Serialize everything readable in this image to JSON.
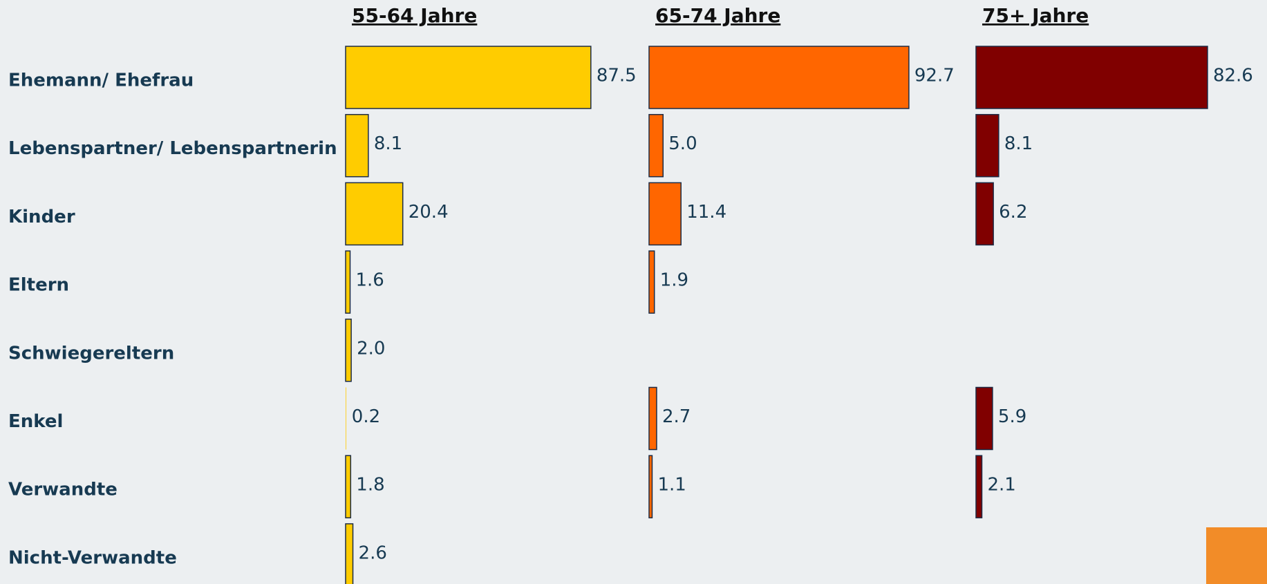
{
  "chart_data": {
    "type": "bar",
    "orientation": "horizontal",
    "categories": [
      "Ehemann/ Ehefrau",
      "Lebenspartner/ Lebenspartnerin",
      "Kinder",
      "Eltern",
      "Schwiegereltern",
      "Enkel",
      "Verwandte",
      "Nicht-Verwandte"
    ],
    "series": [
      {
        "name": "55-64 Jahre",
        "color": "#ffcc00",
        "values": [
          87.5,
          8.1,
          20.4,
          1.6,
          2.0,
          0.2,
          1.8,
          2.6
        ],
        "value_labels": [
          "87.5",
          "8.1",
          "20.4",
          "1.6",
          "2.0",
          "0.2",
          "1.8",
          "2.6"
        ]
      },
      {
        "name": "65-74 Jahre",
        "color": "#ff6600",
        "values": [
          92.7,
          5.0,
          11.4,
          1.9,
          null,
          2.7,
          1.1,
          null
        ],
        "value_labels": [
          "92.7",
          "5.0",
          "11.4",
          "1.9",
          null,
          "2.7",
          "1.1",
          null
        ]
      },
      {
        "name": "75+ Jahre",
        "color": "#800000",
        "values": [
          82.6,
          8.1,
          6.2,
          null,
          null,
          5.9,
          2.1,
          null
        ],
        "value_labels": [
          "82.6",
          "8.1",
          "6.2",
          null,
          null,
          "5.9",
          "2.1",
          null
        ]
      }
    ]
  }
}
